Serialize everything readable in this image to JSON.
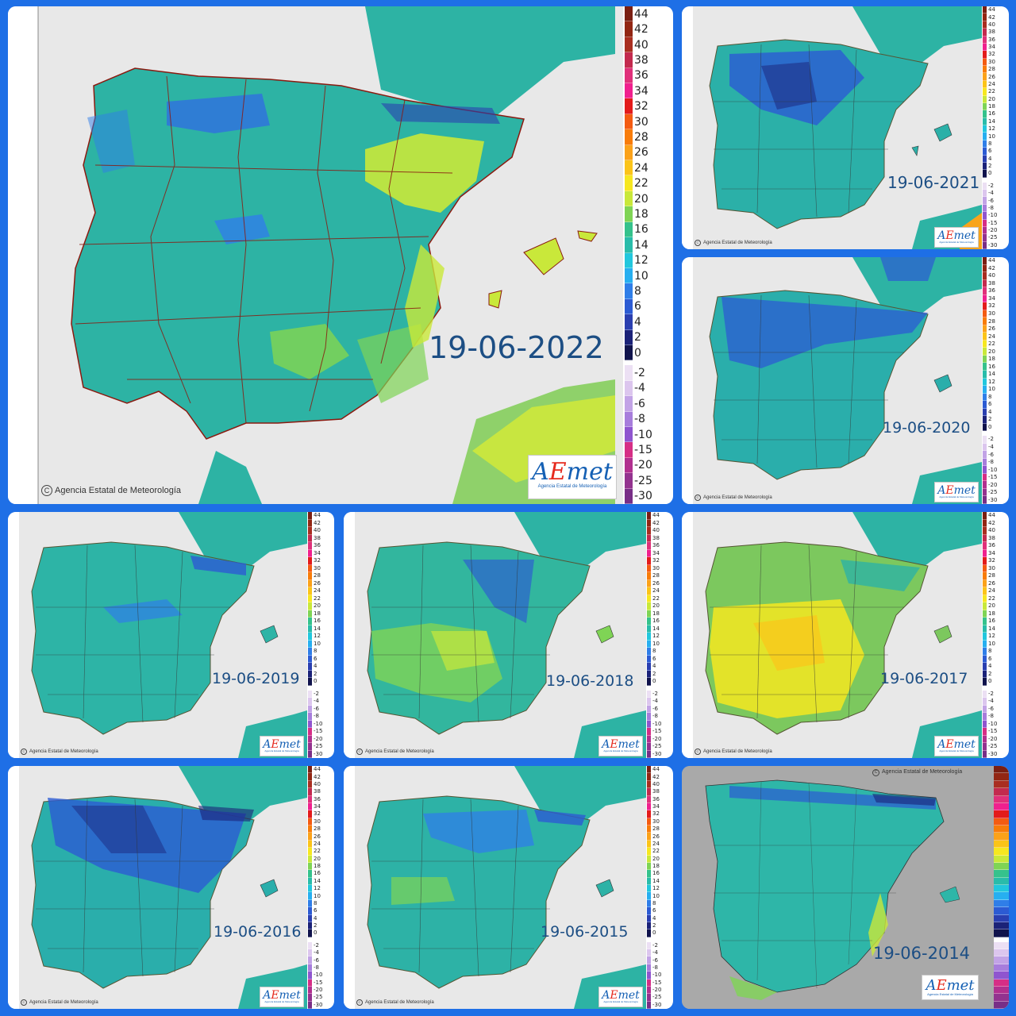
{
  "legend": {
    "warm": [
      {
        "label": "44",
        "color": "#7a1f12"
      },
      {
        "label": "42",
        "color": "#922613"
      },
      {
        "label": "40",
        "color": "#a92e20"
      },
      {
        "label": "38",
        "color": "#c32a4e"
      },
      {
        "label": "36",
        "color": "#e0307a"
      },
      {
        "label": "34",
        "color": "#f0208e"
      },
      {
        "label": "32",
        "color": "#e31b1b"
      },
      {
        "label": "30",
        "color": "#f45b12"
      },
      {
        "label": "28",
        "color": "#f87c0a"
      },
      {
        "label": "26",
        "color": "#fba21a"
      },
      {
        "label": "24",
        "color": "#fbc419"
      },
      {
        "label": "22",
        "color": "#f6e720"
      },
      {
        "label": "20",
        "color": "#c9e83a"
      },
      {
        "label": "18",
        "color": "#7fd455"
      },
      {
        "label": "16",
        "color": "#35c28c"
      },
      {
        "label": "14",
        "color": "#29bcaa"
      },
      {
        "label": "12",
        "color": "#22c7dd"
      },
      {
        "label": "10",
        "color": "#27aff0"
      },
      {
        "label": "8",
        "color": "#2f7ee8"
      },
      {
        "label": "6",
        "color": "#2c5bd3"
      },
      {
        "label": "4",
        "color": "#2a3fb0"
      },
      {
        "label": "2",
        "color": "#1b2278"
      },
      {
        "label": "0",
        "color": "#10134c"
      }
    ],
    "cold": [
      {
        "label": "-2",
        "color": "#ece0f4"
      },
      {
        "label": "-4",
        "color": "#dcc6ee"
      },
      {
        "label": "-6",
        "color": "#c2a3e6"
      },
      {
        "label": "-8",
        "color": "#a77ddc"
      },
      {
        "label": "-10",
        "color": "#8f55cf"
      },
      {
        "label": "-15",
        "color": "#d62e86"
      },
      {
        "label": "-20",
        "color": "#b1308f"
      },
      {
        "label": "-25",
        "color": "#93338f"
      },
      {
        "label": "-30",
        "color": "#782e87"
      }
    ]
  },
  "panels": [
    {
      "date": "19-06-2022",
      "copyright": "Agencia Estatal de Meteorología",
      "logo": "AEmet",
      "logo_sub": "Agencia Estatal de Meteorología",
      "base": "#2db3a4",
      "sea": "#e8e8e8"
    },
    {
      "date": "19-06-2021",
      "copyright": "Agencia Estatal de Meteorología",
      "logo": "AEmet",
      "logo_sub": "Agencia Estatal de Meteorología",
      "base": "#2bb0a8",
      "sea": "#e8e8e8"
    },
    {
      "date": "19-06-2020",
      "copyright": "Agencia Estatal de Meteorología",
      "logo": "AEmet",
      "logo_sub": "Agencia Estatal de Meteorología",
      "base": "#2aaeab",
      "sea": "#e8e8e8"
    },
    {
      "date": "19-06-2019",
      "copyright": "Agencia Estatal de Meteorología",
      "logo": "AEmet",
      "logo_sub": "Agencia Estatal de Meteorología",
      "base": "#2db4a6",
      "sea": "#e8e8e8"
    },
    {
      "date": "19-06-2018",
      "copyright": "Agencia Estatal de Meteorología",
      "logo": "AEmet",
      "logo_sub": "Agencia Estatal de Meteorología",
      "base": "#32b69e",
      "sea": "#e8e8e8"
    },
    {
      "date": "19-06-2017",
      "copyright": "Agencia Estatal de Meteorología",
      "logo": "AEmet",
      "logo_sub": "Agencia Estatal de Meteorología",
      "base": "#7cc85e",
      "sea": "#e8e8e8"
    },
    {
      "date": "19-06-2016",
      "copyright": "Agencia Estatal de Meteorología",
      "logo": "AEmet",
      "logo_sub": "Agencia Estatal de Meteorología",
      "base": "#2aaeab",
      "sea": "#e8e8e8"
    },
    {
      "date": "19-06-2015",
      "copyright": "Agencia Estatal de Meteorología",
      "logo": "AEmet",
      "logo_sub": "Agencia Estatal de Meteorología",
      "base": "#2db2a6",
      "sea": "#e8e8e8"
    },
    {
      "date": "19-06-2014",
      "copyright": "Agencia Estatal de Meteorología",
      "logo": "AEmet",
      "logo_sub": "Agencia Estatal de Meteorología",
      "base": "#2eb6a8",
      "sea": "#a9a9a9"
    }
  ]
}
